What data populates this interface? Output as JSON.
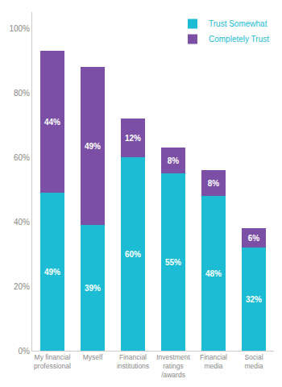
{
  "chart_data": {
    "type": "bar",
    "stacked": true,
    "categories": [
      "My financial\nprofessional",
      "Myself",
      "Financial\ninstitutions",
      "Investment\nratings\n/awards",
      "Financial\nmedia",
      "Social\nmedia"
    ],
    "series": [
      {
        "name": "Trust Somewhat",
        "color": "#1bbcd4",
        "values": [
          49,
          39,
          60,
          55,
          48,
          32
        ],
        "value_labels": [
          "49%",
          "39%",
          "60%",
          "55%",
          "48%",
          "32%"
        ]
      },
      {
        "name": "Completely Trust",
        "color": "#7b4fa6",
        "values": [
          44,
          49,
          12,
          8,
          8,
          6
        ],
        "value_labels": [
          "44%",
          "49%",
          "12%",
          "8%",
          "8%",
          "6%"
        ]
      }
    ],
    "ylim": [
      0,
      105
    ],
    "yticks": [
      {
        "value": 0,
        "label": "0%"
      },
      {
        "value": 20,
        "label": "20%"
      },
      {
        "value": 40,
        "label": "40%"
      },
      {
        "value": 60,
        "label": "60%"
      },
      {
        "value": 80,
        "label": "80%"
      },
      {
        "value": 100,
        "label": "100%"
      }
    ],
    "grid": false,
    "legend": "upper right",
    "data_labels": true
  }
}
